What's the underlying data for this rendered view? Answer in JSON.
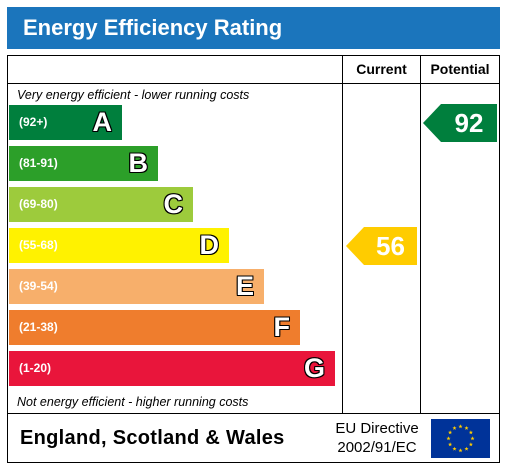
{
  "title": "Energy Efficiency Rating",
  "columns": {
    "current": "Current",
    "potential": "Potential"
  },
  "notes": {
    "top": "Very energy efficient - lower running costs",
    "bottom": "Not energy efficient - higher running costs"
  },
  "chart_data": {
    "type": "bar",
    "title": "Energy Efficiency Rating",
    "categories": [
      "A",
      "B",
      "C",
      "D",
      "E",
      "F",
      "G"
    ],
    "ranges": [
      "(92+)",
      "(81-91)",
      "(69-80)",
      "(55-68)",
      "(39-54)",
      "(21-38)",
      "(1-20)"
    ],
    "colors": [
      "#007f3d",
      "#2c9f29",
      "#9dcb3c",
      "#fff200",
      "#f7af6b",
      "#ef7d2d",
      "#e9153b"
    ],
    "current": {
      "value": 56,
      "band": "D",
      "color": "#ffcc00"
    },
    "potential": {
      "value": 92,
      "band": "A",
      "color": "#007f3d"
    }
  },
  "footer": {
    "country": "England, Scotland & Wales",
    "directive_line1": "EU Directive",
    "directive_line2": "2002/91/EC",
    "flag_colors": {
      "background": "#003399",
      "stars": "#ffcc00"
    }
  }
}
